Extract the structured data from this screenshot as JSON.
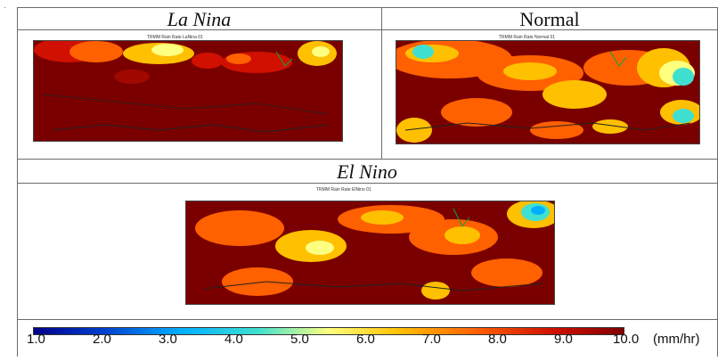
{
  "panels": [
    {
      "name": "La Nina",
      "italic": true,
      "map_title": "TRMM Rain Rate LaNina 01"
    },
    {
      "name": "Normal",
      "italic": false,
      "map_title": "TRMM Rain Rate Normal 01"
    },
    {
      "name": "El Nino",
      "italic": true,
      "map_title": "TRMM Rain Rate ElNino 01"
    }
  ],
  "colorbar": {
    "ticks": [
      "1.0",
      "2.0",
      "3.0",
      "4.0",
      "5.0",
      "6.0",
      "7.0",
      "8.0",
      "9.0",
      "10.0"
    ],
    "unit": "(mm/hr)",
    "colors": [
      "#00008a",
      "#0040d0",
      "#00b0ff",
      "#40e0d0",
      "#ffff80",
      "#ffc000",
      "#ff6000",
      "#d01000",
      "#800000"
    ]
  },
  "corner_mark": "·"
}
